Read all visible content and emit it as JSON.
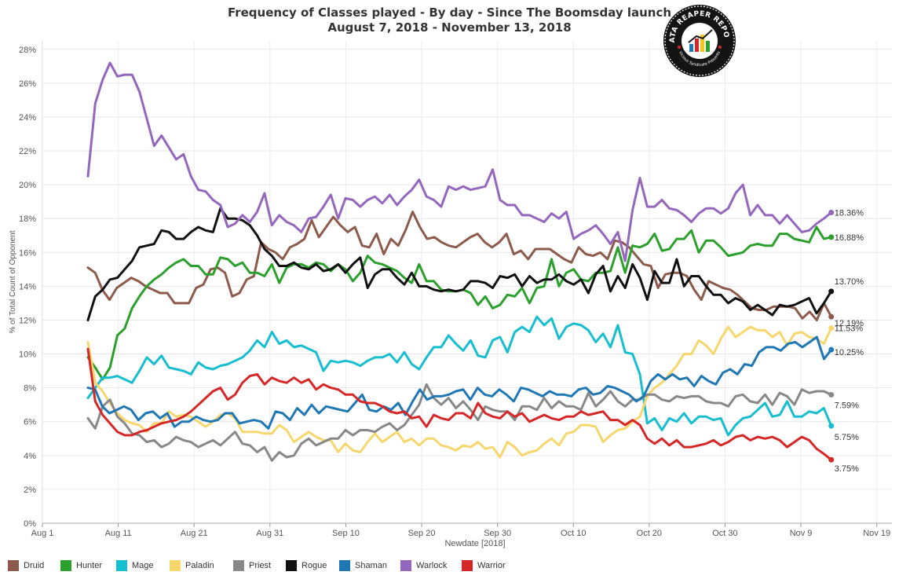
{
  "header": {
    "title": "Frequency of Classes played - By day - Since The Boomsday launch",
    "subtitle": "August 7, 2018 - November 13, 2018"
  },
  "logo": {
    "text": "DATA REAPER REPORT",
    "subtext": "Vicious Syndicate Presents"
  },
  "chart_data": {
    "type": "line",
    "xlabel": "Newdate [2018]",
    "ylabel": "% of Total Count of Opponent",
    "ylim": [
      0,
      28.5
    ],
    "yticks": [
      0,
      2,
      4,
      6,
      8,
      10,
      12,
      14,
      16,
      18,
      20,
      22,
      24,
      26,
      28
    ],
    "ytick_labels": [
      "0%",
      "2%",
      "4%",
      "6%",
      "8%",
      "10%",
      "12%",
      "14%",
      "16%",
      "18%",
      "20%",
      "22%",
      "24%",
      "26%",
      "28%"
    ],
    "xlim": [
      "2018-08-01",
      "2018-11-21"
    ],
    "xticks": [
      "2018-08-01",
      "2018-08-11",
      "2018-08-21",
      "2018-08-31",
      "2018-09-10",
      "2018-09-20",
      "2018-09-30",
      "2018-10-10",
      "2018-10-20",
      "2018-10-30",
      "2018-11-09",
      "2018-11-19"
    ],
    "xtick_labels": [
      "Aug 1",
      "Aug 11",
      "Aug 21",
      "Aug 31",
      "Sep 10",
      "Sep 20",
      "Sep 30",
      "Oct 10",
      "Oct 20",
      "Oct 30",
      "Nov 9",
      "Nov 19"
    ],
    "x_start": "2018-08-07",
    "x_end": "2018-11-13",
    "grid": true,
    "legend_position": "bottom",
    "series": [
      {
        "name": "Druid",
        "color": "#8C5B4C",
        "end_label": "12.19%",
        "values": [
          15.1,
          14.8,
          13.8,
          13.2,
          13.9,
          14.2,
          14.5,
          14.3,
          14.0,
          13.8,
          13.6,
          13.6,
          13.0,
          13.0,
          13.0,
          13.9,
          14.1,
          15.0,
          15.1,
          14.8,
          13.4,
          13.6,
          14.4,
          14.6,
          16.6,
          16.2,
          16.0,
          15.6,
          16.3,
          16.5,
          16.8,
          17.9,
          16.9,
          17.5,
          18.1,
          17.6,
          17.2,
          17.5,
          16.4,
          16.3,
          17.1,
          15.9,
          16.8,
          16.4,
          17.3,
          18.4,
          17.5,
          16.8,
          16.9,
          16.6,
          16.4,
          16.3,
          16.6,
          16.9,
          17.1,
          16.6,
          16.3,
          16.6,
          17.1,
          15.9,
          16.1,
          15.6,
          16.2,
          16.2,
          16.2,
          15.9,
          15.6,
          15.4,
          16.3,
          15.9,
          15.8,
          16.0,
          15.6,
          16.7,
          16.6,
          16.3,
          15.8,
          15.3,
          15.2,
          13.9,
          14.7,
          14.8,
          14.8,
          14.6,
          13.8,
          13.2,
          14.3,
          14.1,
          13.9,
          13.8,
          13.5,
          13.1,
          12.7,
          12.6,
          12.6,
          12.8,
          12.8,
          12.8,
          12.7,
          12.1,
          12.5,
          12.0,
          13.0,
          12.2
        ]
      },
      {
        "name": "Hunter",
        "color": "#2CA02C",
        "end_label": "16.88%",
        "values": [
          9.8,
          9.2,
          8.5,
          9.2,
          11.1,
          11.5,
          12.7,
          13.4,
          14.0,
          14.4,
          14.7,
          15.1,
          15.4,
          15.6,
          15.2,
          15.2,
          14.7,
          14.7,
          15.7,
          15.6,
          15.2,
          15.4,
          14.8,
          14.8,
          14.6,
          15.3,
          14.2,
          15.1,
          15.3,
          15.3,
          15.1,
          15.4,
          15.3,
          14.9,
          15.3,
          15.0,
          14.3,
          14.8,
          15.8,
          15.4,
          15.3,
          15.1,
          14.9,
          14.5,
          14.2,
          15.3,
          14.3,
          14.3,
          13.8,
          13.7,
          13.7,
          13.8,
          13.6,
          12.9,
          13.4,
          12.7,
          12.9,
          13.5,
          13.4,
          13.9,
          13.0,
          13.9,
          14.0,
          15.6,
          14.0,
          14.8,
          15.0,
          14.4,
          14.3,
          14.8,
          14.8,
          14.9,
          16.3,
          14.8,
          16.4,
          16.3,
          16.5,
          17.1,
          16.1,
          16.2,
          16.8,
          16.8,
          17.3,
          16.0,
          16.7,
          16.7,
          16.3,
          15.8,
          15.9,
          16.0,
          16.4,
          16.5,
          16.4,
          16.4,
          17.1,
          17.1,
          16.8,
          16.7,
          16.6,
          17.5,
          16.8,
          16.9
        ]
      },
      {
        "name": "Mage",
        "color": "#17BECF",
        "end_label": "5.75%",
        "values": [
          7.4,
          8.0,
          8.6,
          8.6,
          8.7,
          8.5,
          8.3,
          9.0,
          9.8,
          9.4,
          9.9,
          9.2,
          9.1,
          9.0,
          8.8,
          9.5,
          9.2,
          9.1,
          9.3,
          9.4,
          9.6,
          9.8,
          10.2,
          10.8,
          10.4,
          11.3,
          10.6,
          10.8,
          10.4,
          10.5,
          10.3,
          10.1,
          9.0,
          9.6,
          9.5,
          9.6,
          9.5,
          9.3,
          9.6,
          9.8,
          9.8,
          10.0,
          9.5,
          10.1,
          9.4,
          9.1,
          9.8,
          10.4,
          10.4,
          11.1,
          10.6,
          10.2,
          10.8,
          9.9,
          9.8,
          10.8,
          11.0,
          10.1,
          11.3,
          11.6,
          11.3,
          12.2,
          11.7,
          12.1,
          10.9,
          11.6,
          11.8,
          11.7,
          11.4,
          10.7,
          11.2,
          10.4,
          11.7,
          10.1,
          10.0,
          8.8,
          5.9,
          6.2,
          5.5,
          6.2,
          6.0,
          6.5,
          5.9,
          6.3,
          6.3,
          6.1,
          6.2,
          5.2,
          5.8,
          6.2,
          6.3,
          6.7,
          7.1,
          6.3,
          6.4,
          7.2,
          6.3,
          6.3,
          6.6,
          6.5,
          6.8,
          5.75
        ]
      },
      {
        "name": "Paladin",
        "color": "#F5D76E",
        "end_label": "11.53%",
        "values": [
          10.7,
          8.3,
          7.8,
          7.1,
          6.5,
          6.1,
          5.9,
          5.8,
          5.4,
          5.9,
          5.9,
          6.6,
          6.3,
          6.4,
          6.3,
          6.0,
          5.7,
          6.0,
          6.4,
          6.5,
          6.2,
          5.4,
          5.4,
          5.4,
          5.3,
          5.3,
          5.8,
          5.5,
          4.8,
          5.1,
          5.4,
          5.1,
          4.9,
          4.9,
          4.2,
          4.7,
          4.3,
          4.2,
          4.8,
          5.3,
          4.8,
          5.1,
          5.4,
          4.8,
          5.0,
          4.6,
          5.0,
          5.0,
          4.6,
          4.5,
          4.3,
          4.6,
          4.5,
          4.8,
          4.4,
          4.5,
          3.9,
          4.8,
          4.5,
          4.0,
          4.2,
          4.3,
          4.7,
          5.0,
          4.6,
          5.3,
          5.4,
          5.8,
          5.8,
          5.7,
          4.8,
          5.2,
          5.5,
          5.6,
          6.0,
          6.3,
          7.5,
          8.0,
          8.3,
          8.8,
          9.3,
          10.0,
          10.0,
          10.8,
          10.5,
          10.0,
          10.9,
          11.6,
          11.0,
          11.3,
          11.6,
          11.4,
          11.4,
          11.0,
          11.3,
          10.5,
          11.2,
          11.3,
          11.0,
          10.9,
          10.6,
          11.53
        ]
      },
      {
        "name": "Priest",
        "color": "#888888",
        "end_label": "7.59%",
        "values": [
          6.2,
          5.6,
          6.9,
          7.3,
          6.3,
          5.9,
          5.3,
          5.2,
          4.8,
          4.9,
          4.5,
          4.7,
          5.1,
          4.9,
          4.8,
          4.5,
          4.7,
          4.9,
          4.6,
          5.0,
          5.4,
          4.7,
          4.6,
          4.2,
          4.5,
          3.7,
          4.2,
          3.9,
          4.0,
          4.7,
          5.0,
          4.6,
          4.8,
          5.0,
          5.0,
          5.5,
          5.2,
          5.5,
          5.5,
          5.4,
          5.7,
          5.9,
          5.5,
          5.8,
          6.4,
          7.0,
          8.2,
          7.4,
          7.0,
          7.4,
          6.8,
          7.2,
          6.7,
          6.1,
          6.9,
          6.7,
          6.6,
          6.6,
          6.1,
          6.9,
          6.9,
          6.7,
          7.4,
          6.8,
          7.2,
          6.9,
          6.9,
          6.7,
          7.7,
          6.9,
          7.3,
          7.8,
          7.2,
          6.9,
          7.3,
          7.3,
          7.6,
          7.6,
          7.3,
          7.2,
          7.5,
          7.4,
          7.5,
          7.5,
          7.2,
          7.1,
          7.1,
          6.9,
          7.5,
          7.6,
          7.2,
          7.1,
          7.6,
          7.0,
          7.7,
          7.5,
          7.0,
          7.9,
          7.7,
          7.8,
          7.8,
          7.59
        ]
      },
      {
        "name": "Rogue",
        "color": "#111111",
        "end_label": "13.70%",
        "values": [
          12.0,
          13.4,
          13.8,
          14.4,
          14.5,
          15.0,
          15.5,
          16.3,
          16.4,
          16.5,
          17.3,
          17.2,
          16.8,
          16.8,
          17.2,
          17.5,
          17.3,
          17.2,
          18.6,
          18.0,
          18.0,
          17.9,
          17.6,
          17.0,
          16.2,
          15.8,
          15.2,
          15.2,
          15.4,
          15.1,
          15.0,
          15.3,
          14.9,
          15.0,
          15.3,
          14.8,
          15.3,
          15.7,
          13.9,
          14.7,
          15.0,
          15.0,
          14.5,
          14.1,
          14.8,
          14.0,
          14.0,
          13.8,
          13.7,
          13.8,
          13.7,
          13.8,
          14.3,
          14.3,
          14.2,
          13.9,
          14.6,
          14.5,
          14.7,
          14.0,
          14.6,
          14.2,
          14.4,
          14.4,
          14.7,
          14.3,
          14.1,
          14.4,
          13.6,
          14.7,
          15.2,
          13.7,
          14.6,
          13.9,
          15.3,
          14.5,
          13.2,
          14.9,
          14.2,
          14.2,
          15.6,
          14.0,
          14.6,
          14.6,
          14.0,
          13.5,
          13.5,
          13.0,
          13.3,
          13.1,
          12.6,
          12.9,
          12.6,
          12.3,
          12.9,
          12.8,
          12.9,
          13.1,
          13.3,
          12.4,
          13.0,
          13.7
        ]
      },
      {
        "name": "Shaman",
        "color": "#1F77B4",
        "end_label": "10.25%",
        "values": [
          8.0,
          7.9,
          6.9,
          6.5,
          6.7,
          6.9,
          6.7,
          6.1,
          6.5,
          6.6,
          6.2,
          6.5,
          5.7,
          6.0,
          6.0,
          6.3,
          6.1,
          6.0,
          6.1,
          6.5,
          6.5,
          5.9,
          6.0,
          6.1,
          6.0,
          5.6,
          6.6,
          6.5,
          6.1,
          6.8,
          6.4,
          7.0,
          6.5,
          6.9,
          6.8,
          6.7,
          6.6,
          7.1,
          7.6,
          6.7,
          6.6,
          6.9,
          6.7,
          7.1,
          6.4,
          7.2,
          7.9,
          7.3,
          7.5,
          7.5,
          7.6,
          7.8,
          7.9,
          7.3,
          8.0,
          7.6,
          7.5,
          7.9,
          7.6,
          7.2,
          8.0,
          7.9,
          7.7,
          7.5,
          7.8,
          7.6,
          7.6,
          7.5,
          7.9,
          8.0,
          7.6,
          7.7,
          8.1,
          8.0,
          7.8,
          7.6,
          7.2,
          7.5,
          8.4,
          8.8,
          8.5,
          8.8,
          8.5,
          8.6,
          8.1,
          8.7,
          8.4,
          8.2,
          8.9,
          9.1,
          8.8,
          9.4,
          9.3,
          10.1,
          10.4,
          10.4,
          10.2,
          10.6,
          10.7,
          10.4,
          10.7,
          11.0,
          9.7,
          10.25
        ]
      },
      {
        "name": "Warlock",
        "color": "#9467BD",
        "end_label": "18.36%",
        "values": [
          20.5,
          24.8,
          26.2,
          27.2,
          26.4,
          26.5,
          26.5,
          25.5,
          23.9,
          22.3,
          22.9,
          22.2,
          21.5,
          21.8,
          20.5,
          19.7,
          19.6,
          19.1,
          18.8,
          17.5,
          17.7,
          18.2,
          17.8,
          18.4,
          19.5,
          17.6,
          18.2,
          17.8,
          17.6,
          17.2,
          18.0,
          18.1,
          18.7,
          19.4,
          18.0,
          19.2,
          19.1,
          18.7,
          19.1,
          19.3,
          18.9,
          19.4,
          18.8,
          19.3,
          19.7,
          20.3,
          19.3,
          19.1,
          18.7,
          19.9,
          19.7,
          19.9,
          19.7,
          19.8,
          19.9,
          20.9,
          19.1,
          18.8,
          18.8,
          18.2,
          18.2,
          18.0,
          17.8,
          18.3,
          18.0,
          18.4,
          16.8,
          17.1,
          17.3,
          17.6,
          17.1,
          16.5,
          17.2,
          15.5,
          18.5,
          20.4,
          18.7,
          18.7,
          19.1,
          18.6,
          18.5,
          18.2,
          17.8,
          18.3,
          18.6,
          18.6,
          18.3,
          18.6,
          19.5,
          20.0,
          18.2,
          18.8,
          18.2,
          18.2,
          17.7,
          18.2,
          17.7,
          17.2,
          17.3,
          17.7,
          18.0,
          18.36
        ]
      },
      {
        "name": "Warrior",
        "color": "#D62728",
        "end_label": "3.75%",
        "values": [
          10.3,
          7.2,
          6.4,
          5.9,
          5.4,
          5.2,
          5.2,
          5.4,
          5.5,
          5.7,
          5.9,
          6.0,
          6.1,
          6.3,
          6.6,
          7.0,
          7.4,
          7.8,
          8.0,
          7.3,
          7.6,
          8.3,
          8.7,
          8.8,
          8.2,
          8.6,
          8.4,
          8.3,
          8.6,
          8.3,
          8.5,
          7.9,
          8.2,
          8.0,
          7.9,
          7.6,
          7.6,
          7.2,
          7.1,
          7.1,
          6.9,
          6.6,
          6.5,
          6.6,
          6.2,
          6.3,
          5.7,
          6.4,
          6.2,
          6.1,
          6.5,
          6.5,
          6.2,
          7.1,
          6.5,
          6.3,
          6.2,
          6.6,
          6.3,
          6.5,
          6.0,
          6.2,
          6.4,
          6.2,
          6.1,
          6.3,
          6.3,
          6.6,
          6.4,
          6.5,
          6.6,
          6.1,
          6.1,
          5.8,
          6.1,
          5.8,
          5.0,
          4.7,
          5.0,
          4.6,
          4.9,
          4.5,
          4.5,
          4.6,
          4.7,
          4.9,
          4.6,
          4.8,
          5.1,
          5.2,
          4.9,
          5.1,
          5.0,
          5.1,
          4.9,
          4.5,
          4.8,
          5.1,
          4.9,
          4.4,
          4.1,
          3.75
        ]
      }
    ]
  }
}
